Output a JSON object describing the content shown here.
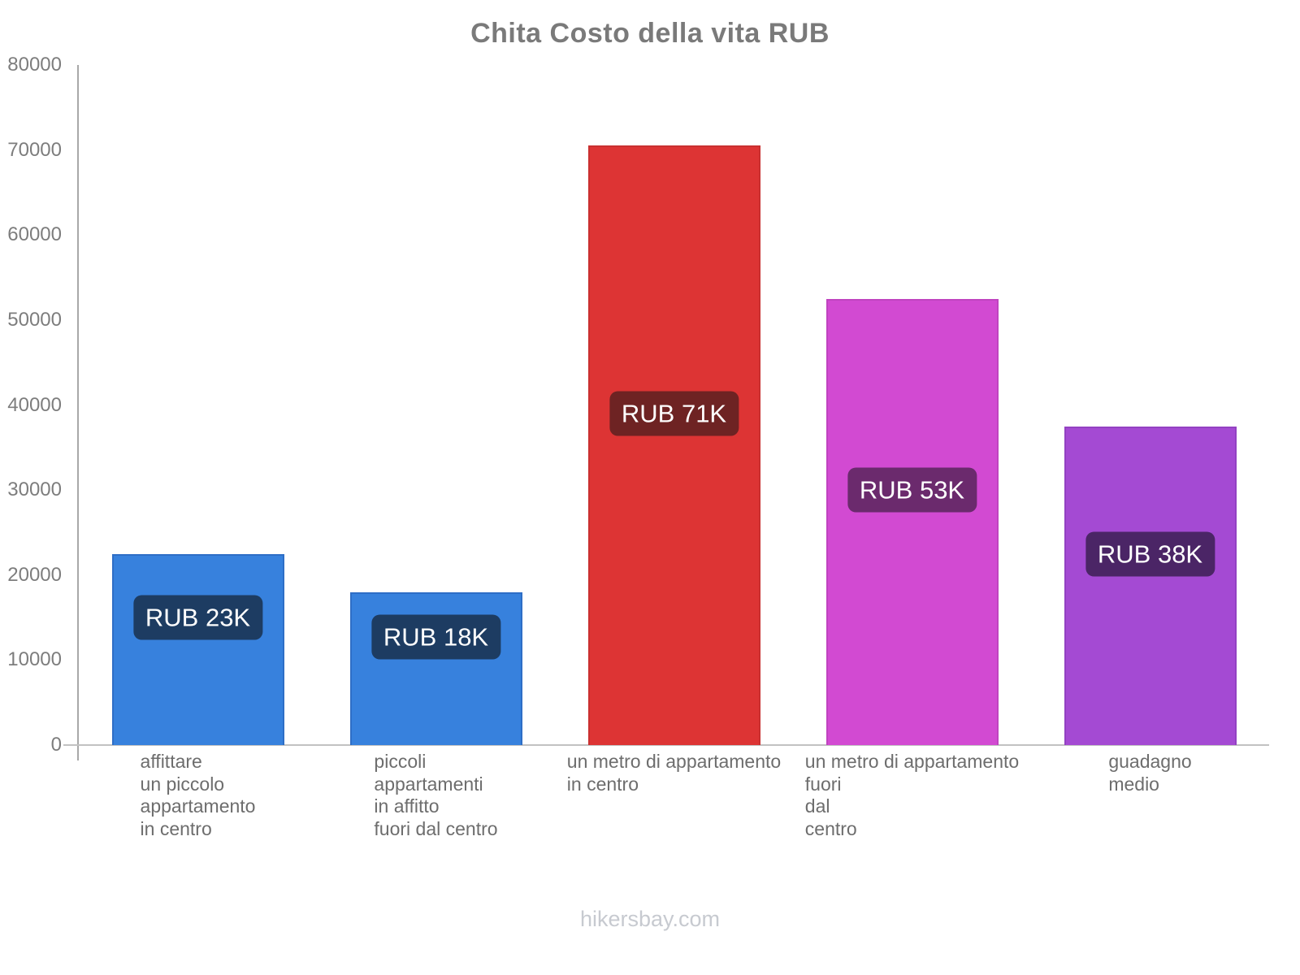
{
  "title": "Chita Costo della vita RUB",
  "footer": {
    "text": "hikersbay.com"
  },
  "chart_data": {
    "type": "bar",
    "title": "Chita Costo della vita RUB",
    "currency": "RUB",
    "xlabel": "",
    "ylabel": "",
    "ylim": [
      0,
      80000
    ],
    "ytick_step": 10000,
    "yticks": [
      0,
      10000,
      20000,
      30000,
      40000,
      50000,
      60000,
      70000,
      80000
    ],
    "grid": false,
    "legend": "none",
    "categories": [
      [
        "affittare",
        "un piccolo",
        "appartamento",
        "in centro"
      ],
      [
        "piccoli",
        "appartamenti",
        "in affitto",
        "fuori dal centro"
      ],
      [
        "un metro di appartamento",
        "in centro"
      ],
      [
        "un metro di appartamento",
        "fuori",
        "dal",
        "centro"
      ],
      [
        "guadagno",
        "medio"
      ]
    ],
    "values": [
      22500,
      18000,
      70500,
      52500,
      37500
    ],
    "value_labels": [
      "RUB 23K",
      "RUB 18K",
      "RUB 71K",
      "RUB 53K",
      "RUB 38K"
    ],
    "bar_colors": [
      "#3781dd",
      "#3781dd",
      "#dd3434",
      "#d24ad2",
      "#a44ad3"
    ],
    "bar_border_colors": [
      "#2e6ec6",
      "#2e6ec6",
      "#c93030",
      "#c043c0",
      "#9342c2"
    ],
    "badge_colors": [
      "#1d3c62",
      "#1d3c62",
      "#6e2323",
      "#6b2a6d",
      "#4b2566"
    ],
    "axis_color": "#a8a8a8",
    "baseline_color": "#c2c2c2",
    "tick_label_color": "#7d7d7d",
    "category_label_color": "#6d6d6d",
    "title_color": "#7a7a7a",
    "footer_color": "#c7cad0"
  }
}
